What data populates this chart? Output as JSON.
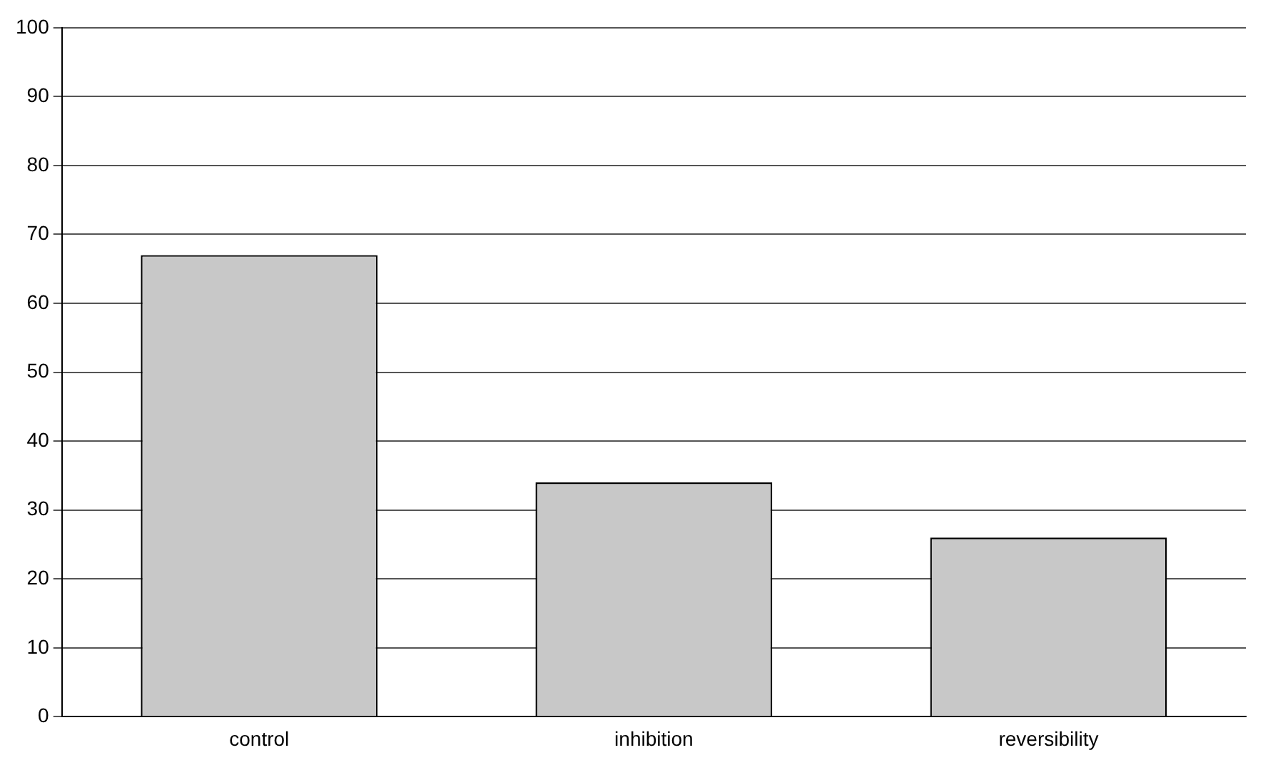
{
  "chart_data": {
    "type": "bar",
    "categories": [
      "control",
      "inhibition",
      "reversibility"
    ],
    "values": [
      67,
      34,
      26
    ],
    "color": "#c8c8c8",
    "ylim": [
      0,
      100
    ],
    "yticks": [
      0,
      10,
      20,
      30,
      40,
      50,
      60,
      70,
      80,
      90,
      100
    ],
    "grid": "y"
  }
}
